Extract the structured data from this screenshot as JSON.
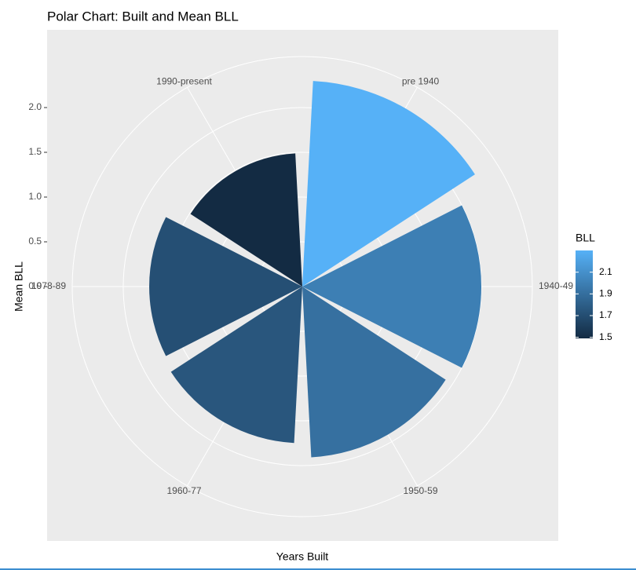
{
  "chart_data": {
    "type": "polar-bar",
    "title": "Polar Chart: Built and Mean BLL",
    "x_label": "Years Built",
    "y_label": "Mean BLL",
    "categories": [
      "pre 1940",
      "1940-49",
      "1950-59",
      "1960-77",
      "1978-89",
      "1990-present"
    ],
    "values": [
      2.3,
      2.0,
      1.91,
      1.75,
      1.71,
      1.49
    ],
    "ylim": [
      0,
      2.57
    ],
    "yticks": [
      {
        "value": 0,
        "label": "0.0"
      },
      0.5,
      {
        "value": 1,
        "label": "1.0"
      },
      1.5,
      {
        "value": 2,
        "label": "2.0"
      }
    ],
    "grid": true,
    "legend": {
      "title": "BLL",
      "ticks": [
        1.5,
        1.7,
        1.9,
        2.1
      ],
      "low_color": "#132b43",
      "high_color": "#56b1f7"
    }
  }
}
